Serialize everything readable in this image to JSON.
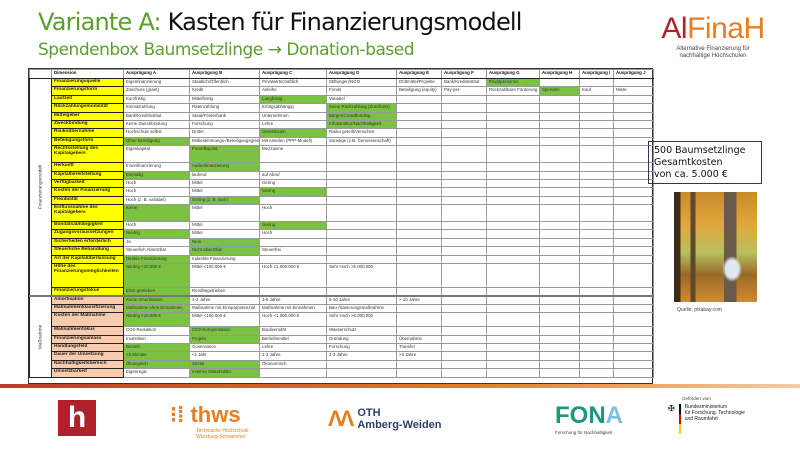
{
  "slide": {
    "title_prefix": "Variante A:",
    "title_rest": " Kasten für Finanzierungsmodell",
    "subtitle": "Spendenbox Baumsetzlinge → Donation-based"
  },
  "brand": {
    "name_part1": "Al",
    "name_part2": "Fina",
    "name_part3": "H",
    "tagline_line1": "Alternative Finanzierung für",
    "tagline_line2": "nachhaltige Hochschulen",
    "colors": {
      "dark_red": "#b0202a",
      "orange": "#e67e22",
      "green": "#5aa02c"
    }
  },
  "table": {
    "headers": [
      "Dimension",
      "Ausprägung A",
      "Ausprägung B",
      "Ausprägung C",
      "Ausprägung D",
      "Ausprägung E",
      "Ausprägung F",
      "Ausprägung G",
      "Ausprägung H",
      "Ausprägung I",
      "Ausprägung J"
    ],
    "sections": [
      {
        "label": "Finanzierungsmodell",
        "color": "#ffff00",
        "rows": [
          {
            "dimension": "Finanzierungsquelle",
            "values": [
              "Eigenfinanzierung",
              "Staatlich/Öffentlich",
              "Privatwirtschaftlich",
              "Stiftungen/NGO",
              "Drittmittel/Projekte",
              "Bank/Kreditinstitut",
              "Privatpersonen",
              "",
              "",
              ""
            ],
            "selected": [
              6
            ]
          },
          {
            "dimension": "Finanzierungsform",
            "values": [
              "Zuschuss (grant)",
              "Kredit",
              "Anleihe",
              "Fonds",
              "Beteiligung (equity)",
              "Pay-per-",
              "Rückzahlbare Förderung",
              "Spenden",
              "Kauf",
              "Miete"
            ],
            "selected": [
              7
            ]
          },
          {
            "dimension": "Laufzeit",
            "values": [
              "Kurzfristig",
              "Mittelfristig",
              "Langfristig",
              "Variabel",
              "",
              "",
              "",
              "",
              "",
              ""
            ],
            "selected": [
              2
            ]
          },
          {
            "dimension": "Rückzahlungsmodalität",
            "values": [
              "Einmalzahlung",
              "Ratenzahlung",
              "Erfolgsabhängig",
              "Keine Rückzahlung (Zuschuss)",
              "",
              "",
              "",
              "",
              "",
              ""
            ],
            "selected": [
              3
            ]
          },
          {
            "dimension": "Mittelgeber",
            "values": [
              "Bank/Kreditinstitut",
              "Staat/Förderbank",
              "Unternehmen",
              "Bürger/Crowdfunding",
              "",
              "",
              "",
              "",
              "",
              ""
            ],
            "selected": [
              3
            ]
          },
          {
            "dimension": "Zweckbindung",
            "values": [
              "Keine Zweckbindung",
              "Forschung",
              "Lehre",
              "Infrastruktur/Nachhaltigkeit",
              "",
              "",
              "",
              "",
              "",
              ""
            ],
            "selected": [
              3
            ]
          },
          {
            "dimension": "Risikoübernahme",
            "values": [
              "Hochschule selbst",
              "Dritter",
              "Gemeinsam",
              "Risiko geteilt/Versichert",
              "",
              "",
              "",
              "",
              "",
              ""
            ],
            "selected": [
              2
            ]
          },
          {
            "dimension": "Beteiligungsform",
            "values": [
              "Ohne Beteiligung",
              "Mitbestimmungs-/Beteiligungsgremium",
              "Mit Anteilen (PPP-Modell)",
              "Sonstige (z.B. Genossenschaft)",
              "",
              "",
              "",
              "",
              "",
              ""
            ],
            "selected": [
              0
            ]
          },
          {
            "dimension": "Rechtsstellung des Kapitalgebers",
            "values": [
              "Eigenkapital",
              "Fremdkapital",
              "Mezzanine",
              "",
              "",
              "",
              "",
              "",
              "",
              ""
            ],
            "selected": [
              1
            ]
          },
          {
            "dimension": "Herkunft",
            "values": [
              "Innenfinanzierung",
              "Außenfinanzierung",
              "",
              "",
              "",
              "",
              "",
              "",
              "",
              ""
            ],
            "selected": [
              1
            ]
          },
          {
            "dimension": "Kapitalbereitstellung",
            "values": [
              "Einmalig",
              "laufend",
              "auf Abruf",
              "",
              "",
              "",
              "",
              "",
              "",
              ""
            ],
            "selected": [
              0
            ]
          },
          {
            "dimension": "Verfügbarkeit",
            "values": [
              "Hoch",
              "Mittel",
              "Gering",
              "",
              "",
              "",
              "",
              "",
              "",
              ""
            ],
            "selected": []
          },
          {
            "dimension": "Kosten der Finanzierung",
            "values": [
              "Hoch",
              "Mittel",
              "Gering",
              "",
              "",
              "",
              "",
              "",
              "",
              ""
            ],
            "selected": [
              2
            ]
          },
          {
            "dimension": "Flexibilität",
            "values": [
              "Hoch (z. B. variabel)",
              "Gering (z. B. starr)",
              "",
              "",
              "",
              "",
              "",
              "",
              "",
              ""
            ],
            "selected": [
              1
            ]
          },
          {
            "dimension": "Einflussnahme des Kapitalgebers",
            "values": [
              "Keine",
              "Mittel",
              "Hoch",
              "",
              "",
              "",
              "",
              "",
              "",
              ""
            ],
            "selected": [
              0
            ]
          },
          {
            "dimension": "Bonitätsabhängigkeit",
            "values": [
              "Hoch",
              "Mittel",
              "Gering",
              "",
              "",
              "",
              "",
              "",
              "",
              ""
            ],
            "selected": [
              2
            ]
          },
          {
            "dimension": "Zugangsvoraussetzungen",
            "values": [
              "Niedrig",
              "Mittel",
              "Hoch",
              "",
              "",
              "",
              "",
              "",
              "",
              ""
            ],
            "selected": [
              0
            ]
          },
          {
            "dimension": "Sicherheiten erforderlich",
            "values": [
              "Ja",
              "Nein",
              "",
              "",
              "",
              "",
              "",
              "",
              "",
              ""
            ],
            "selected": [
              1
            ]
          },
          {
            "dimension": "Steuerliche Behandlung",
            "values": [
              "Steuerlich Absetzbar",
              "Nicht absetzbar",
              "Steuerfrei",
              "",
              "",
              "",
              "",
              "",
              "",
              ""
            ],
            "selected": [
              1
            ]
          },
          {
            "dimension": "Art der Kapitalüberlassung",
            "values": [
              "Direkte Finanzierung",
              "Indirekte Finanzierung",
              "",
              "",
              "",
              "",
              "",
              "",
              "",
              ""
            ],
            "selected": [
              0
            ]
          },
          {
            "dimension": "Höhe des Finanzierungsmöglichkeiten",
            "values": [
              "Niedrig <10.000 €",
              "Mittel <100.000 €",
              "Hoch <1.000.000 €",
              "Sehr Hoch >5.000.000",
              "",
              "",
              "",
              "",
              "",
              ""
            ],
            "selected": [
              0
            ]
          },
          {
            "dimension": "Finanzierungsfokus",
            "values": [
              "ESG-getrieben",
              "Renditegetrieben",
              "",
              "",
              "",
              "",
              "",
              "",
              "",
              ""
            ],
            "selected": [
              0
            ]
          }
        ]
      },
      {
        "label": "Maßnahme",
        "color": "#f8cbad",
        "rows": [
          {
            "dimension": "Amortisation",
            "values": [
              "Keine Amortisation",
              "1-2 Jahre",
              "3-5 Jahre",
              "5-10 Jahre",
              "> 10 Jahre",
              "",
              "",
              "",
              "",
              ""
            ],
            "selected": [
              0
            ]
          },
          {
            "dimension": "Maßnahmenklassifizierung",
            "values": [
              "Maßnahme ohne Einnahmen",
              "Maßnahme mit Einsparpotenzial",
              "Maßnahme mit Einnahmen",
              "Bau-/Sanierungsmaßnahme",
              "",
              "",
              "",
              "",
              "",
              ""
            ],
            "selected": [
              0
            ]
          },
          {
            "dimension": "Kosten der Maßnahme",
            "values": [
              "Niedrig <10.000 €",
              "Mittel <100.000 €",
              "Hoch <1.000.000 €",
              "Sehr Hoch >5.000.000",
              "",
              "",
              "",
              "",
              "",
              ""
            ],
            "selected": [
              0
            ]
          },
          {
            "dimension": "Maßnahmenfokus",
            "values": [
              "CO2-Reduktion",
              "CO2-Kompensation",
              "Biodiversität",
              "Wasserschutz",
              "",
              "",
              "",
              "",
              "",
              ""
            ],
            "selected": [
              1
            ]
          },
          {
            "dimension": "Finanzierungsanlass",
            "values": [
              "Investition",
              "Projekt",
              "Betriebsmittel",
              "Gründung",
              "Übernahme",
              "",
              "",
              "",
              "",
              ""
            ],
            "selected": [
              1
            ]
          },
          {
            "dimension": "Handlungsfeld",
            "values": [
              "Betrieb",
              "Governance",
              "Lehre",
              "Forschung",
              "Transfer",
              "",
              "",
              "",
              "",
              ""
            ],
            "selected": [
              0
            ]
          },
          {
            "dimension": "Dauer der Umsetzung",
            "values": [
              "<6 Monate",
              "<1 Jahr",
              "1-2 Jahre",
              "2-3 Jahre",
              ">3 Jahre",
              "",
              "",
              "",
              "",
              ""
            ],
            "selected": [
              0
            ]
          },
          {
            "dimension": "Nachhaltigkeitsbereich",
            "values": [
              "Ökologisch",
              "Sozial",
              "Ökonomisch",
              "",
              "",
              "",
              "",
              "",
              "",
              ""
            ],
            "selected": [
              0,
              1
            ]
          },
          {
            "dimension": "Umsetzbarkeit",
            "values": [
              "Eigenregie",
              "externe Stakeholder",
              "",
              "",
              "",
              "",
              "",
              "",
              "",
              ""
            ],
            "selected": [
              1
            ]
          }
        ]
      }
    ]
  },
  "info_box": {
    "line1": "500 Baumsetzlinge",
    "line2": "Gesamtkosten",
    "line3": "von ca. 5.000 €"
  },
  "photo_credit": "Quelle: pixabay.com",
  "footer": {
    "landshut_letter": "h",
    "thws_name": "thws",
    "thws_sub1": "Technische Hochschule",
    "thws_sub2": "Würzburg-Schweinfurt",
    "oth_line1": "OTH",
    "oth_line2": "Amberg-Weiden",
    "fona_name_a": "FON",
    "fona_name_b": "A",
    "fona_sub": "Forschung für Nachhaltigkeit",
    "bmbf_top": "Gefördert vom",
    "bmbf_line1": "Bundesministerium",
    "bmbf_line2": "für Forschung, Technologie",
    "bmbf_line3": "und Raumfahrt"
  }
}
